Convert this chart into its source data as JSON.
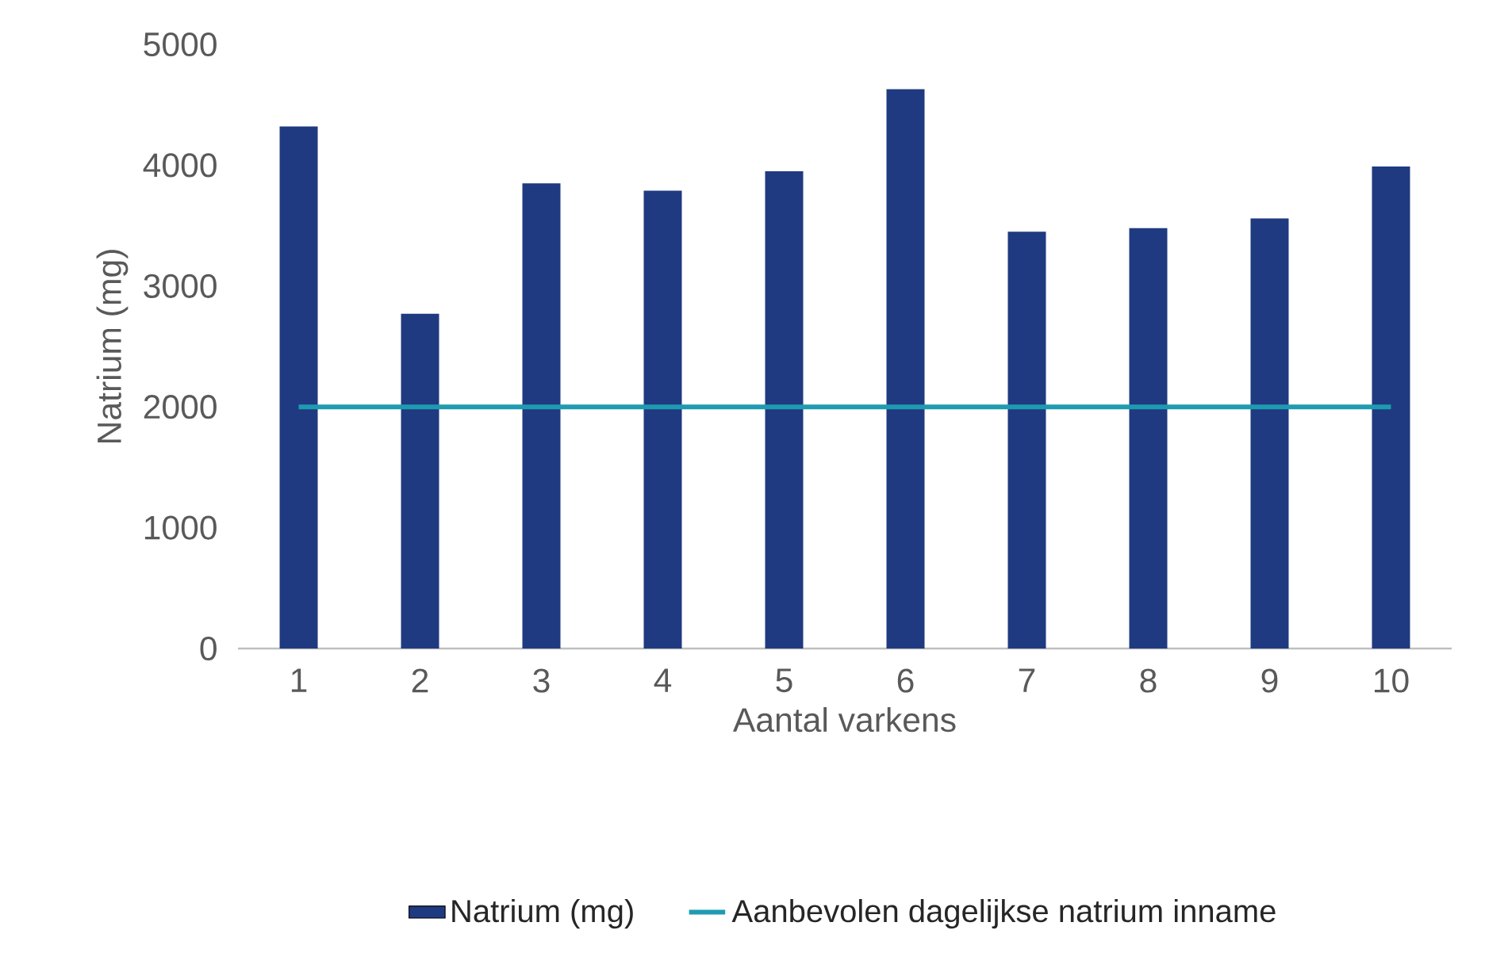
{
  "chart_data": {
    "type": "bar",
    "xlabel": "Aantal varkens",
    "ylabel": "Natrium (mg)",
    "categories": [
      "1",
      "2",
      "3",
      "4",
      "5",
      "6",
      "7",
      "8",
      "9",
      "10"
    ],
    "series": [
      {
        "name": "Natrium (mg)",
        "color": "#1f3a80",
        "values": [
          4320,
          2770,
          3850,
          3790,
          3950,
          4630,
          3450,
          3480,
          3560,
          3990
        ]
      },
      {
        "name": "Aanbevolen dagelijkse natrium inname",
        "type": "line",
        "color": "#1e9bb0",
        "values": [
          2000,
          2000,
          2000,
          2000,
          2000,
          2000,
          2000,
          2000,
          2000,
          2000
        ]
      }
    ],
    "ylim": [
      0,
      5000
    ],
    "yticks": [
      0,
      1000,
      2000,
      3000,
      4000,
      5000
    ],
    "grid": false,
    "legend": "bottom"
  }
}
